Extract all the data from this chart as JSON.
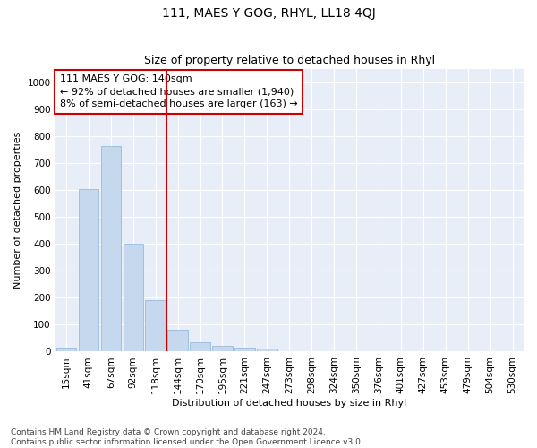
{
  "title": "111, MAES Y GOG, RHYL, LL18 4QJ",
  "subtitle": "Size of property relative to detached houses in Rhyl",
  "xlabel": "Distribution of detached houses by size in Rhyl",
  "ylabel": "Number of detached properties",
  "bar_labels": [
    "15sqm",
    "41sqm",
    "67sqm",
    "92sqm",
    "118sqm",
    "144sqm",
    "170sqm",
    "195sqm",
    "221sqm",
    "247sqm",
    "273sqm",
    "298sqm",
    "324sqm",
    "350sqm",
    "376sqm",
    "401sqm",
    "427sqm",
    "453sqm",
    "479sqm",
    "504sqm",
    "530sqm"
  ],
  "bar_values": [
    15,
    605,
    765,
    400,
    190,
    80,
    35,
    20,
    15,
    13,
    0,
    0,
    0,
    0,
    0,
    0,
    0,
    0,
    0,
    0,
    0
  ],
  "bar_color": "#c5d8ee",
  "bar_edgecolor": "#8ab4d8",
  "vline_color": "#cc0000",
  "annotation_text": "111 MAES Y GOG: 140sqm\n← 92% of detached houses are smaller (1,940)\n8% of semi-detached houses are larger (163) →",
  "annotation_box_color": "#ffffff",
  "annotation_box_edgecolor": "#cc0000",
  "ylim": [
    0,
    1050
  ],
  "yticks": [
    0,
    100,
    200,
    300,
    400,
    500,
    600,
    700,
    800,
    900,
    1000
  ],
  "background_color": "#e8eef8",
  "footer_text": "Contains HM Land Registry data © Crown copyright and database right 2024.\nContains public sector information licensed under the Open Government Licence v3.0.",
  "title_fontsize": 10,
  "subtitle_fontsize": 9,
  "axis_label_fontsize": 8,
  "tick_fontsize": 7.5,
  "footer_fontsize": 6.5,
  "annotation_fontsize": 8
}
